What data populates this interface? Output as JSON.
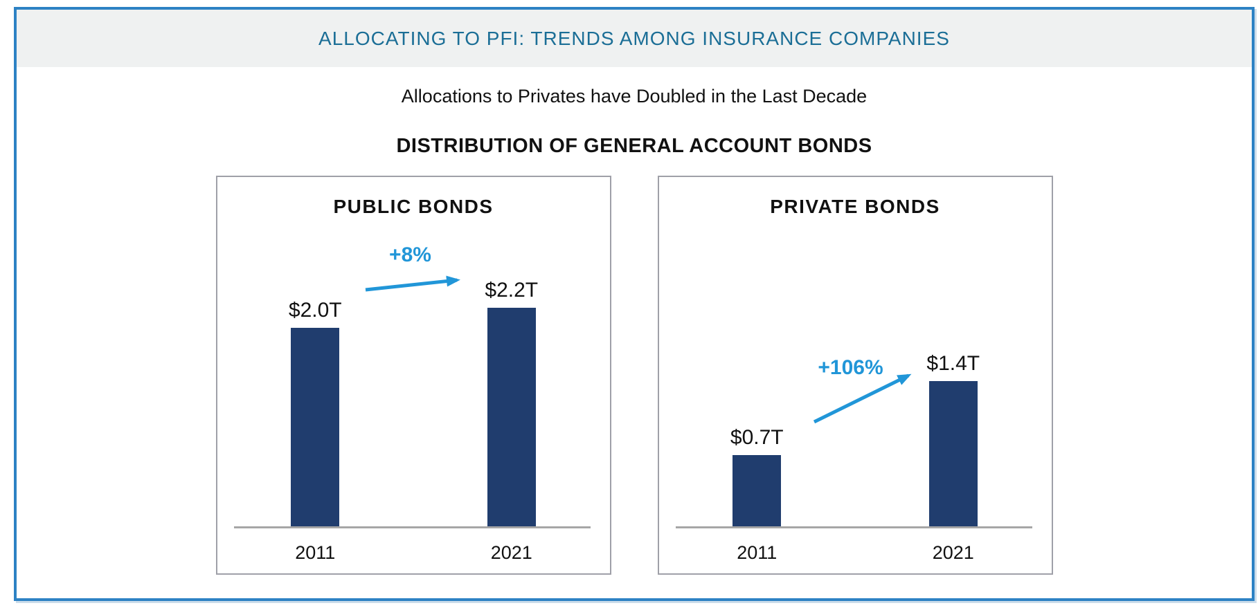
{
  "header": {
    "title": "ALLOCATING TO PFI: TRENDS AMONG INSURANCE COMPANIES"
  },
  "subtitle": "Allocations to Privates have Doubled in the Last Decade",
  "chart_title": "DISTRIBUTION OF GENERAL ACCOUNT BONDS",
  "colors": {
    "frame_border": "#2d82c4",
    "header_background": "#eff1f1",
    "header_text": "#1b6e96",
    "bar_fill": "#203d6e",
    "accent_arrow_blue": "#2196d8",
    "axis_line": "#a6a6a6",
    "panel_border": "#9fa0a8"
  },
  "chart_data": [
    {
      "type": "bar",
      "title": "PUBLIC BONDS",
      "categories": [
        "2011",
        "2021"
      ],
      "values": [
        2.0,
        2.2
      ],
      "value_labels": [
        "$2.0T",
        "$2.2T"
      ],
      "annotation": "+8%",
      "annotation_style": "blue arrow pointing up-right from 2011 value toward 2021 value",
      "ylabel": "",
      "xlabel": "",
      "ylim": [
        0,
        3.5
      ],
      "grid": false,
      "legend": "none",
      "unit": "T"
    },
    {
      "type": "bar",
      "title": "PRIVATE BONDS",
      "categories": [
        "2011",
        "2021"
      ],
      "values": [
        0.7,
        1.4
      ],
      "value_labels": [
        "$0.7T",
        "$1.4T"
      ],
      "annotation": "+106%",
      "annotation_style": "blue arrow pointing up-right from 2011 value toward 2021 value",
      "ylabel": "",
      "xlabel": "",
      "ylim": [
        0,
        3.3
      ],
      "grid": false,
      "legend": "none",
      "unit": "T"
    }
  ]
}
